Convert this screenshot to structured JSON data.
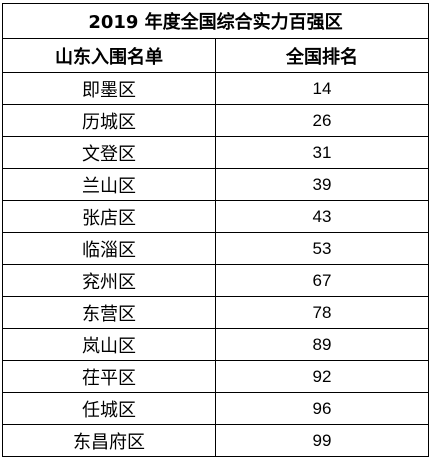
{
  "table": {
    "title": "2019 年度全国综合实力百强区",
    "headers": [
      "山东入围名单",
      "全国排名"
    ],
    "rows": [
      {
        "district": "即墨区",
        "rank": "14"
      },
      {
        "district": "历城区",
        "rank": "26"
      },
      {
        "district": "文登区",
        "rank": "31"
      },
      {
        "district": "兰山区",
        "rank": "39"
      },
      {
        "district": "张店区",
        "rank": "43"
      },
      {
        "district": "临淄区",
        "rank": "53"
      },
      {
        "district": "兖州区",
        "rank": "67"
      },
      {
        "district": "东营区",
        "rank": "78"
      },
      {
        "district": "岚山区",
        "rank": "89"
      },
      {
        "district": "茌平区",
        "rank": "92"
      },
      {
        "district": "任城区",
        "rank": "96"
      },
      {
        "district": "东昌府区",
        "rank": "99"
      }
    ]
  }
}
